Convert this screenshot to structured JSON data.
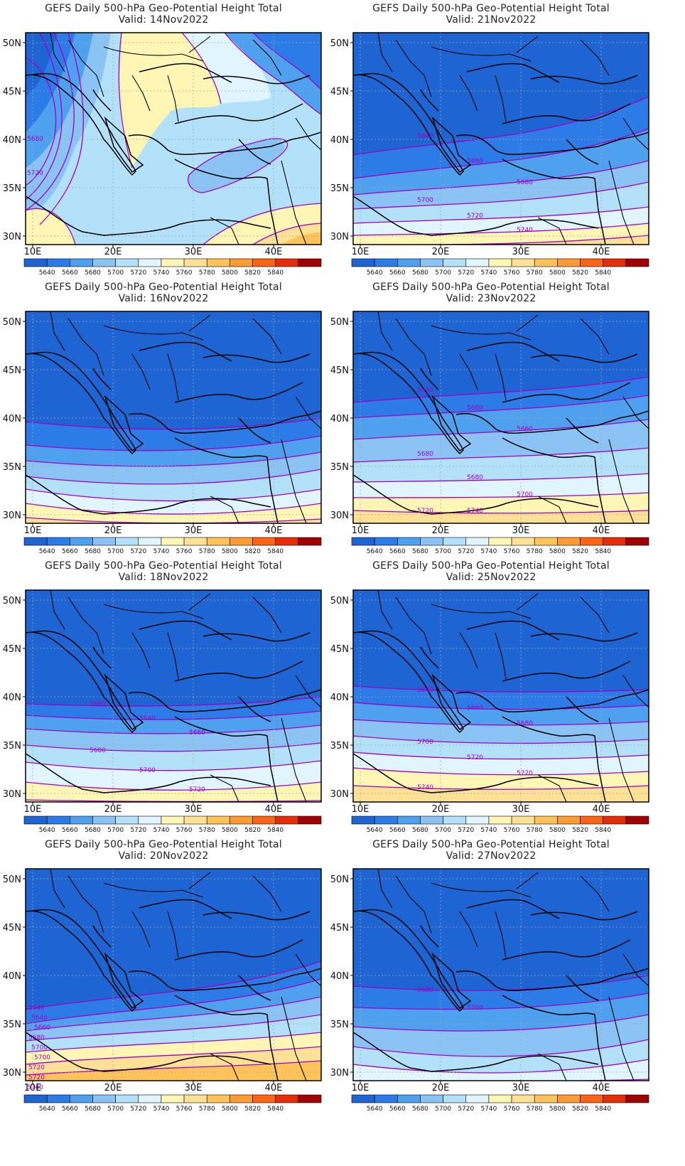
{
  "panels": [
    {
      "title": "GEFS Daily 500-hPa Geo-Potential Height Total",
      "valid": "Valid: 14Nov2022",
      "contour_labels": [
        "5680",
        "5720"
      ]
    },
    {
      "title": "GEFS Daily 500-hPa Geo-Potential Height Total",
      "valid": "Valid: 21Nov2022",
      "contour_labels": [
        "5640",
        "5660",
        "5680",
        "5700",
        "5720",
        "5740"
      ]
    },
    {
      "title": "GEFS Daily 500-hPa Geo-Potential Height Total",
      "valid": "Valid: 16Nov2022",
      "contour_labels": []
    },
    {
      "title": "GEFS Daily 500-hPa Geo-Potential Height Total",
      "valid": "Valid: 23Nov2022",
      "contour_labels": [
        "5640",
        "5660",
        "5660",
        "5680",
        "5680",
        "5700",
        "5720",
        "5740"
      ]
    },
    {
      "title": "GEFS Daily 500-hPa Geo-Potential Height Total",
      "valid": "Valid: 18Nov2022",
      "contour_labels": [
        "5660",
        "5640",
        "5660",
        "5680",
        "5700",
        "5720"
      ]
    },
    {
      "title": "GEFS Daily 500-hPa Geo-Potential Height Total",
      "valid": "Valid: 25Nov2022",
      "contour_labels": [
        "5640",
        "5660",
        "5680",
        "5700",
        "5720",
        "5720",
        "5740"
      ]
    },
    {
      "title": "GEFS Daily 500-hPa Geo-Potential Height Total",
      "valid": "Valid: 20Nov2022",
      "contour_labels": [
        "5640",
        "5640",
        "5660",
        "5680",
        "5700",
        "5700",
        "5720",
        "5720",
        "5740",
        "5760"
      ]
    },
    {
      "title": "GEFS Daily 500-hPa Geo-Potential Height Total",
      "valid": "Valid: 27Nov2022",
      "contour_labels": [
        "5680",
        "5700"
      ]
    }
  ],
  "lat_ticks": [
    "50N",
    "45N",
    "40N",
    "35N",
    "30N"
  ],
  "lon_ticks": [
    "10E",
    "20E",
    "30E",
    "40E"
  ],
  "colorbar": {
    "labels": [
      "5640",
      "5660",
      "5680",
      "5700",
      "5720",
      "5740",
      "5760",
      "5780",
      "5800",
      "5820",
      "5840"
    ],
    "colors": [
      "#1e64d2",
      "#2d7be6",
      "#50a0f0",
      "#8cc3f5",
      "#b4e1fa",
      "#e1f5ff",
      "#fff5b4",
      "#ffe196",
      "#ffc35a",
      "#ff9b32",
      "#ff6414",
      "#e62d0a",
      "#a00000"
    ]
  },
  "style": {
    "contour_color": "#a000c8",
    "land_border": "#000000"
  }
}
